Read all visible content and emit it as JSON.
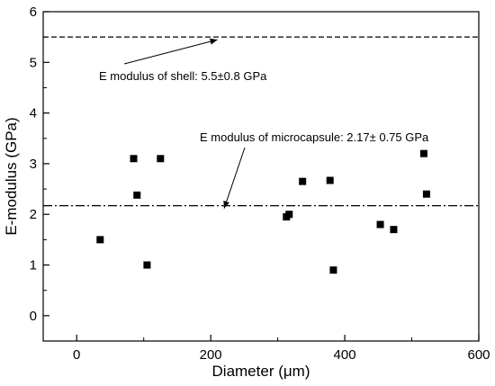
{
  "chart_data": {
    "type": "scatter",
    "xlabel": "Diameter (μm)",
    "ylabel": "E-modulus (GPa)",
    "xlim": [
      -50,
      600
    ],
    "ylim": [
      -0.5,
      6
    ],
    "xticks": [
      0,
      200,
      400,
      600
    ],
    "yticks": [
      0,
      1,
      2,
      3,
      4,
      5,
      6
    ],
    "grid": false,
    "marker": "square",
    "marker_color": "#000000",
    "points": [
      {
        "x": 35,
        "y": 1.5
      },
      {
        "x": 85,
        "y": 3.1
      },
      {
        "x": 90,
        "y": 2.38
      },
      {
        "x": 105,
        "y": 1.0
      },
      {
        "x": 125,
        "y": 3.1
      },
      {
        "x": 313,
        "y": 1.95
      },
      {
        "x": 317,
        "y": 2.0
      },
      {
        "x": 337,
        "y": 2.65
      },
      {
        "x": 378,
        "y": 2.67
      },
      {
        "x": 383,
        "y": 0.9
      },
      {
        "x": 453,
        "y": 1.8
      },
      {
        "x": 473,
        "y": 1.7
      },
      {
        "x": 518,
        "y": 3.2
      },
      {
        "x": 522,
        "y": 2.4
      }
    ],
    "reference_lines": [
      {
        "y": 5.5,
        "style": "dashed"
      },
      {
        "y": 2.17,
        "style": "dash-dot"
      }
    ],
    "annotations": [
      {
        "text": "E modulus of shell: 5.5±0.8 GPa",
        "arrow_to": {
          "x": 210,
          "y": 5.5
        }
      },
      {
        "text": "E modulus of microcapsule: 2.17± 0.75 GPa",
        "arrow_to": {
          "x": 220,
          "y": 2.17
        }
      }
    ]
  }
}
